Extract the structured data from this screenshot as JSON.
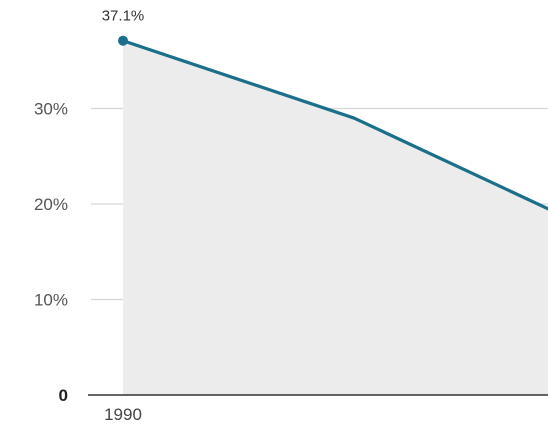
{
  "chart_data": {
    "type": "line",
    "x": [
      "1990",
      "",
      ""
    ],
    "series": [
      {
        "values": [
          37.1,
          29.0,
          19.5
        ]
      }
    ],
    "y_ticks": [
      {
        "value": 0,
        "label": "0"
      },
      {
        "value": 10,
        "label": "10%"
      },
      {
        "value": 20,
        "label": "20%"
      },
      {
        "value": 30,
        "label": "30%"
      }
    ],
    "x_tick_labels": [
      "1990"
    ],
    "data_labels": [
      {
        "index": 0,
        "text": "37.1%"
      }
    ],
    "ylim": [
      0,
      40
    ],
    "grid": true,
    "area_fill": true,
    "colors": {
      "line": "#1b6f8a",
      "area": "#ececec",
      "grid": "#d6d6d6",
      "axis": "#333333"
    }
  }
}
